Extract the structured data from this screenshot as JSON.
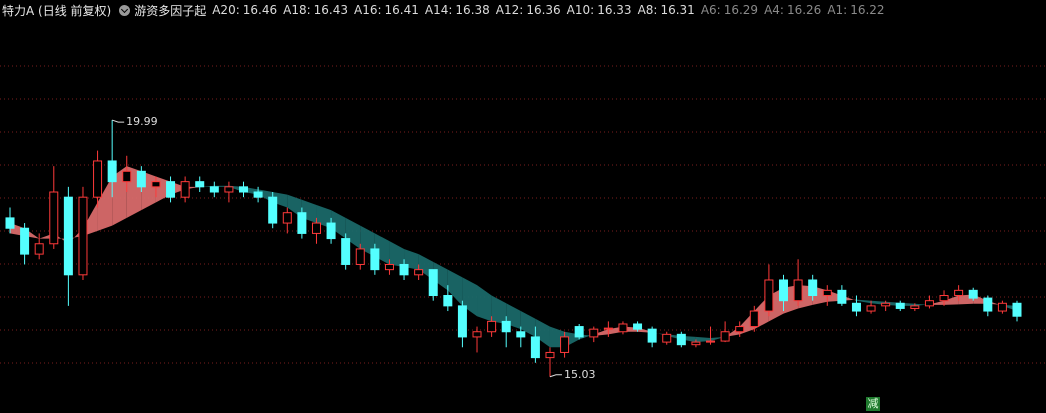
{
  "header": {
    "title": "特力A (日线 前复权)",
    "indicator": "游资多因子起",
    "levels": [
      {
        "name": "A20:",
        "value": 16.46,
        "color": "#dcdcdc"
      },
      {
        "name": "A18:",
        "value": 16.43,
        "color": "#dcdcdc"
      },
      {
        "name": "A16:",
        "value": 16.41,
        "color": "#dcdcdc"
      },
      {
        "name": "A14:",
        "value": 16.38,
        "color": "#dcdcdc"
      },
      {
        "name": "A12:",
        "value": 16.36,
        "color": "#dcdcdc"
      },
      {
        "name": "A10:",
        "value": 16.33,
        "color": "#dcdcdc"
      },
      {
        "name": "A8:",
        "value": 16.31,
        "color": "#dcdcdc"
      },
      {
        "name": "A6:",
        "value": 16.29,
        "color": "#8a8a8a"
      },
      {
        "name": "A4:",
        "value": 16.26,
        "color": "#8a8a8a"
      },
      {
        "name": "A1:",
        "value": 16.22,
        "color": "#8a8a8a"
      }
    ]
  },
  "chart_data": {
    "type": "candlestick",
    "ylim": [
      14.33,
      22.31
    ],
    "up_color": "#ff3a3a",
    "down_color": "#54ffff",
    "ribbon_up_color": "#d86a6a",
    "ribbon_down_color": "#1a6868",
    "candles": [
      {
        "open": 18.1,
        "high": 18.3,
        "low": 17.8,
        "close": 17.9
      },
      {
        "open": 17.9,
        "high": 18.0,
        "low": 17.2,
        "close": 17.4
      },
      {
        "open": 17.4,
        "high": 17.8,
        "low": 17.3,
        "close": 17.6
      },
      {
        "open": 17.6,
        "high": 19.1,
        "low": 17.5,
        "close": 18.6
      },
      {
        "open": 18.5,
        "high": 18.7,
        "low": 16.4,
        "close": 17.0
      },
      {
        "open": 17.0,
        "high": 18.7,
        "low": 16.9,
        "close": 18.5
      },
      {
        "open": 18.5,
        "high": 19.4,
        "low": 18.3,
        "close": 19.2
      },
      {
        "open": 19.2,
        "high": 19.99,
        "low": 18.5,
        "close": 18.8
      },
      {
        "open": 18.8,
        "high": 19.3,
        "low": 18.6,
        "close": 19.0
      },
      {
        "open": 19.0,
        "high": 19.1,
        "low": 18.6,
        "close": 18.7
      },
      {
        "open": 18.7,
        "high": 18.9,
        "low": 18.5,
        "close": 18.8
      },
      {
        "open": 18.8,
        "high": 18.9,
        "low": 18.4,
        "close": 18.5
      },
      {
        "open": 18.5,
        "high": 18.9,
        "low": 18.4,
        "close": 18.8
      },
      {
        "open": 18.8,
        "high": 18.9,
        "low": 18.6,
        "close": 18.7
      },
      {
        "open": 18.7,
        "high": 18.8,
        "low": 18.5,
        "close": 18.6
      },
      {
        "open": 18.6,
        "high": 18.8,
        "low": 18.4,
        "close": 18.7
      },
      {
        "open": 18.7,
        "high": 18.8,
        "low": 18.5,
        "close": 18.6
      },
      {
        "open": 18.6,
        "high": 18.7,
        "low": 18.4,
        "close": 18.5
      },
      {
        "open": 18.5,
        "high": 18.6,
        "low": 17.9,
        "close": 18.0
      },
      {
        "open": 18.0,
        "high": 18.3,
        "low": 17.8,
        "close": 18.2
      },
      {
        "open": 18.2,
        "high": 18.3,
        "low": 17.7,
        "close": 17.8
      },
      {
        "open": 17.8,
        "high": 18.1,
        "low": 17.6,
        "close": 18.0
      },
      {
        "open": 18.0,
        "high": 18.1,
        "low": 17.6,
        "close": 17.7
      },
      {
        "open": 17.7,
        "high": 17.8,
        "low": 17.1,
        "close": 17.2
      },
      {
        "open": 17.2,
        "high": 17.6,
        "low": 17.1,
        "close": 17.5
      },
      {
        "open": 17.5,
        "high": 17.6,
        "low": 17.0,
        "close": 17.1
      },
      {
        "open": 17.1,
        "high": 17.3,
        "low": 17.0,
        "close": 17.2
      },
      {
        "open": 17.2,
        "high": 17.3,
        "low": 16.9,
        "close": 17.0
      },
      {
        "open": 17.0,
        "high": 17.2,
        "low": 16.9,
        "close": 17.1
      },
      {
        "open": 17.1,
        "high": 17.1,
        "low": 16.5,
        "close": 16.6
      },
      {
        "open": 16.6,
        "high": 16.8,
        "low": 16.3,
        "close": 16.4
      },
      {
        "open": 16.4,
        "high": 16.5,
        "low": 15.6,
        "close": 15.8
      },
      {
        "open": 15.8,
        "high": 16.0,
        "low": 15.5,
        "close": 15.9
      },
      {
        "open": 15.9,
        "high": 16.2,
        "low": 15.8,
        "close": 16.1
      },
      {
        "open": 16.1,
        "high": 16.2,
        "low": 15.6,
        "close": 15.9
      },
      {
        "open": 15.9,
        "high": 16.0,
        "low": 15.6,
        "close": 15.8
      },
      {
        "open": 15.8,
        "high": 16.0,
        "low": 15.3,
        "close": 15.4
      },
      {
        "open": 15.4,
        "high": 15.6,
        "low": 15.03,
        "close": 15.5
      },
      {
        "open": 15.5,
        "high": 15.9,
        "low": 15.4,
        "close": 15.8
      },
      {
        "open": 16.0,
        "high": 16.05,
        "low": 15.75,
        "close": 15.8
      },
      {
        "open": 15.8,
        "high": 16.0,
        "low": 15.7,
        "close": 15.95
      },
      {
        "open": 15.95,
        "high": 16.1,
        "low": 15.8,
        "close": 15.97
      },
      {
        "open": 15.9,
        "high": 16.1,
        "low": 15.85,
        "close": 16.05
      },
      {
        "open": 16.05,
        "high": 16.1,
        "low": 15.9,
        "close": 15.95
      },
      {
        "open": 15.95,
        "high": 16.0,
        "low": 15.6,
        "close": 15.7
      },
      {
        "open": 15.7,
        "high": 15.9,
        "low": 15.65,
        "close": 15.85
      },
      {
        "open": 15.85,
        "high": 15.9,
        "low": 15.6,
        "close": 15.65
      },
      {
        "open": 15.65,
        "high": 15.75,
        "low": 15.6,
        "close": 15.7
      },
      {
        "open": 15.7,
        "high": 16.0,
        "low": 15.65,
        "close": 15.72
      },
      {
        "open": 15.72,
        "high": 16.1,
        "low": 15.7,
        "close": 15.9
      },
      {
        "open": 15.9,
        "high": 16.1,
        "low": 15.8,
        "close": 16.0
      },
      {
        "open": 16.0,
        "high": 16.4,
        "low": 15.9,
        "close": 16.3
      },
      {
        "open": 16.3,
        "high": 17.2,
        "low": 16.2,
        "close": 16.9
      },
      {
        "open": 16.9,
        "high": 17.0,
        "low": 16.3,
        "close": 16.5
      },
      {
        "open": 16.5,
        "high": 17.3,
        "low": 16.4,
        "close": 16.9
      },
      {
        "open": 16.9,
        "high": 17.0,
        "low": 16.5,
        "close": 16.6
      },
      {
        "open": 16.6,
        "high": 16.8,
        "low": 16.4,
        "close": 16.7
      },
      {
        "open": 16.7,
        "high": 16.8,
        "low": 16.4,
        "close": 16.45
      },
      {
        "open": 16.45,
        "high": 16.6,
        "low": 16.2,
        "close": 16.3
      },
      {
        "open": 16.3,
        "high": 16.5,
        "low": 16.25,
        "close": 16.4
      },
      {
        "open": 16.4,
        "high": 16.5,
        "low": 16.3,
        "close": 16.45
      },
      {
        "open": 16.45,
        "high": 16.5,
        "low": 16.3,
        "close": 16.35
      },
      {
        "open": 16.35,
        "high": 16.45,
        "low": 16.3,
        "close": 16.4
      },
      {
        "open": 16.4,
        "high": 16.6,
        "low": 16.35,
        "close": 16.5
      },
      {
        "open": 16.5,
        "high": 16.7,
        "low": 16.4,
        "close": 16.6
      },
      {
        "open": 16.6,
        "high": 16.8,
        "low": 16.5,
        "close": 16.7
      },
      {
        "open": 16.7,
        "high": 16.75,
        "low": 16.5,
        "close": 16.55
      },
      {
        "open": 16.55,
        "high": 16.6,
        "low": 16.2,
        "close": 16.3
      },
      {
        "open": 16.3,
        "high": 16.5,
        "low": 16.25,
        "close": 16.45
      },
      {
        "open": 16.45,
        "high": 16.5,
        "low": 16.1,
        "close": 16.2
      }
    ],
    "fast": [
      18.0,
      17.9,
      17.7,
      17.8,
      17.6,
      17.9,
      18.4,
      18.9,
      19.1,
      19.0,
      18.9,
      18.8,
      18.7,
      18.7,
      18.7,
      18.7,
      18.6,
      18.55,
      18.4,
      18.3,
      18.1,
      18.0,
      17.9,
      17.7,
      17.5,
      17.35,
      17.2,
      17.15,
      17.1,
      16.9,
      16.7,
      16.4,
      16.2,
      16.1,
      16.05,
      15.95,
      15.8,
      15.6,
      15.6,
      15.75,
      15.85,
      15.95,
      16.0,
      15.98,
      15.9,
      15.82,
      15.75,
      15.7,
      15.72,
      15.8,
      16.0,
      16.3,
      16.6,
      16.75,
      16.8,
      16.78,
      16.7,
      16.6,
      16.5,
      16.45,
      16.42,
      16.4,
      16.4,
      16.43,
      16.5,
      16.6,
      16.62,
      16.5,
      16.4,
      16.3
    ],
    "slow": [
      17.8,
      17.75,
      17.7,
      17.7,
      17.7,
      17.75,
      17.85,
      17.95,
      18.1,
      18.25,
      18.4,
      18.55,
      18.65,
      18.7,
      18.72,
      18.72,
      18.7,
      18.65,
      18.6,
      18.55,
      18.45,
      18.35,
      18.25,
      18.1,
      17.95,
      17.8,
      17.65,
      17.5,
      17.4,
      17.25,
      17.1,
      16.95,
      16.8,
      16.6,
      16.45,
      16.3,
      16.15,
      16.0,
      15.9,
      15.85,
      15.82,
      15.85,
      15.9,
      15.9,
      15.88,
      15.85,
      15.82,
      15.8,
      15.78,
      15.8,
      15.85,
      15.95,
      16.1,
      16.25,
      16.35,
      16.42,
      16.48,
      16.5,
      16.52,
      16.5,
      16.48,
      16.46,
      16.44,
      16.42,
      16.42,
      16.43,
      16.44,
      16.44,
      16.42,
      16.4
    ],
    "signal": "减"
  }
}
